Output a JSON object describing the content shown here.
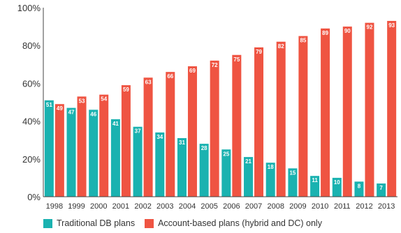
{
  "colors": {
    "traditional": "#1ab2b0",
    "account": "#ef5442"
  },
  "chart_data": {
    "type": "bar",
    "categories": [
      "1998",
      "1999",
      "2000",
      "2001",
      "2002",
      "2003",
      "2004",
      "2005",
      "2006",
      "2007",
      "2008",
      "2009",
      "2010",
      "2011",
      "2012",
      "2013"
    ],
    "series": [
      {
        "name": "Traditional DB plans",
        "values": [
          51,
          47,
          46,
          41,
          37,
          34,
          31,
          28,
          25,
          21,
          18,
          15,
          11,
          10,
          8,
          7
        ]
      },
      {
        "name": "Account-based plans (hybrid and DC) only",
        "values": [
          49,
          53,
          54,
          59,
          63,
          66,
          69,
          72,
          75,
          79,
          82,
          85,
          89,
          90,
          92,
          93
        ]
      }
    ],
    "ylim": [
      0,
      100
    ],
    "yticks": [
      "0%",
      "20%",
      "40%",
      "60%",
      "80%",
      "100%"
    ],
    "data_labels": true,
    "grid": false,
    "legend_position": "bottom"
  }
}
